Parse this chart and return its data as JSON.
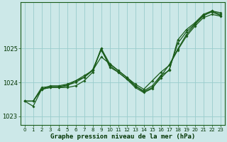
{
  "xlabel": "Graphe pression niveau de la mer (hPa)",
  "background_color": "#cce8e8",
  "plot_bg_color": "#cce8e8",
  "grid_color": "#99cccc",
  "line_color": "#1a5c1a",
  "axis_color": "#1a5c1a",
  "label_color": "#003300",
  "ylim": [
    1022.75,
    1026.35
  ],
  "xlim": [
    -0.5,
    23.5
  ],
  "yticks": [
    1023,
    1024,
    1025
  ],
  "xticks": [
    0,
    1,
    2,
    3,
    4,
    5,
    6,
    7,
    8,
    9,
    10,
    11,
    12,
    13,
    14,
    15,
    16,
    17,
    18,
    19,
    20,
    21,
    22,
    23
  ],
  "series": [
    [
      1023.45,
      1023.45,
      1023.8,
      1023.85,
      1023.85,
      1023.85,
      1023.9,
      1024.05,
      1024.3,
      1025.0,
      1024.55,
      1024.35,
      1024.15,
      1023.9,
      1023.75,
      1023.9,
      1024.2,
      1024.35,
      1025.25,
      1025.55,
      1025.75,
      1026.0,
      1026.1,
      1026.05
    ],
    [
      1023.45,
      1023.45,
      1023.8,
      1023.9,
      1023.9,
      1023.95,
      1024.05,
      1024.2,
      1024.35,
      1024.75,
      1024.55,
      1024.35,
      1024.15,
      1023.95,
      1023.8,
      1024.05,
      1024.3,
      1024.5,
      1024.95,
      1025.35,
      1025.65,
      1025.9,
      1026.0,
      1025.95
    ],
    [
      1023.45,
      1023.3,
      1023.8,
      1023.85,
      1023.85,
      1023.9,
      1024.05,
      1024.15,
      1024.35,
      1025.0,
      1024.45,
      1024.3,
      1024.1,
      1023.85,
      1023.7,
      1023.82,
      1024.18,
      1024.52,
      1024.98,
      1025.4,
      1025.7,
      1025.95,
      1026.1,
      1026.0
    ],
    [
      1023.45,
      1023.45,
      1023.85,
      1023.88,
      1023.88,
      1023.92,
      1024.0,
      1024.15,
      1024.38,
      1024.95,
      1024.5,
      1024.3,
      1024.1,
      1023.9,
      1023.72,
      1023.85,
      1024.12,
      1024.38,
      1025.15,
      1025.48,
      1025.72,
      1025.97,
      1026.07,
      1025.97
    ]
  ]
}
